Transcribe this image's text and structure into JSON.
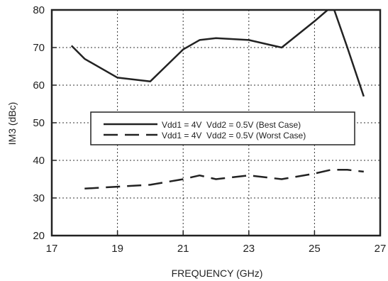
{
  "chart_data": {
    "type": "line",
    "xlabel": "FREQUENCY (GHz)",
    "ylabel": "IM3 (dBc)",
    "xlim": [
      17,
      27
    ],
    "ylim": [
      20,
      80
    ],
    "x_ticks": [
      "17",
      "19",
      "21",
      "23",
      "25",
      "27"
    ],
    "y_ticks": [
      "20",
      "30",
      "40",
      "50",
      "60",
      "70",
      "80"
    ],
    "grid": "on (dotted)",
    "legend_placement": "center-right",
    "series": [
      {
        "name": "Vdd1 = 4V  Vdd2 = 0.5V (Best Case)",
        "line_style": "solid",
        "x": [
          17.6,
          18.0,
          19.0,
          20.0,
          21.0,
          21.5,
          22.0,
          23.0,
          24.0,
          25.0,
          25.4,
          25.6,
          26.0,
          26.5
        ],
        "y": [
          70.5,
          67.0,
          62.0,
          61.0,
          69.5,
          72.0,
          72.5,
          72.0,
          70.0,
          77.0,
          80.0,
          80.0,
          70.0,
          57.0
        ]
      },
      {
        "name": "Vdd1 = 4V  Vdd2 = 0.5V (Worst Case)",
        "line_style": "dashed",
        "x": [
          18.0,
          19.0,
          20.0,
          21.0,
          21.5,
          22.0,
          23.0,
          24.0,
          25.0,
          25.5,
          26.0,
          26.5
        ],
        "y": [
          32.5,
          33.0,
          33.5,
          35.0,
          36.0,
          35.0,
          36.0,
          35.0,
          36.5,
          37.5,
          37.5,
          37.0
        ]
      }
    ]
  },
  "colors": {
    "line": "#222222",
    "grid": "#333333",
    "background": "#ffffff"
  }
}
